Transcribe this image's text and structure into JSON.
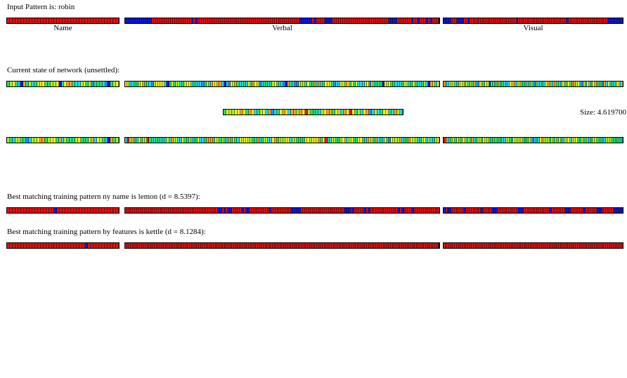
{
  "header": {
    "input_pattern": "Input Pattern is: robin"
  },
  "group_labels": {
    "name": "Name",
    "verbal": "Verbal",
    "visual": "Visual"
  },
  "network": {
    "state_label": "Current state of network (unsettled):",
    "size_label": "Size: 4.619700"
  },
  "matches": {
    "by_name_label": "Best matching training pattern ny name is lemon (d = 8.5397):",
    "by_features_label": "Best matching training pattern by features is kettle (d = 8.1284):"
  },
  "colors": {
    "on": "#e01010",
    "off": "#1018d8",
    "palette": [
      "#1a1ad8",
      "#1e90ff",
      "#20d8f0",
      "#20e070",
      "#a8f020",
      "#f0f020",
      "#f0a020",
      "#e81818"
    ]
  },
  "patterns": {
    "input": {
      "name": "RRRRRRRRRRRRRRRRRRRRRRRRRRRRRRRRRRRRRRRR",
      "verbal": "BBBBBBBBBBBBBRRRRRRRRRRRRRRRRRRRBRBRRRRRRRRRRRRRRRRRRRRRRRRRRRRRRRRRRRRRRRRRRRRRRRRRBBBBBBRBRRRRBBBBRRRRRRRRRRRRRRRRRRRRRRRRRRRBBBBRRRRRRRBRRBRRRBRBRRR",
      "visual": "BBBBRRRBBBBRRBRRRRRRRRRRRRRRRRRRRRRRRRRBRRRRRRRRRRRRRRRRRRRRRRRRRRBRRRRRRRRRRRRRRRRRRRRRBBBBBBBB"
    },
    "state_top": {
      "name": "34532063423455334450256632245341333210345",
      "verbal": "54223345632214555520353442345523222134265566202154632232536541233234532210632114442533626235543122546535352224514233305453322235423432234206425",
      "visual": "62245423554643536215435402363633222556245336235314223256426432253453664521435235663316252324525"
    },
    "hidden": "3544556536523452612356526646574333245663542657534256124235532642",
    "state_bottom": {
      "name": "43245331244566345536243334533346254320634",
      "verbal": "27463253447332332324264422533423352236663543432634325455443362344225634445524433335545556357324433452445335532644362325315444623365442345242345",
      "visual": "76234434435534362344354423343332254335445433344123256444343534324552545334342334443322445333332"
    },
    "match_name": {
      "name": "RRRRRRRRRRRRRRRRRBRRRRRRRRRRRRRRRRRRRRRR",
      "verbal": "RRRRRRRRRRRRRRRRRRRRRRRRRRRRRRRRRRRRRRRRRRRRRRRBBRBRBBRRRRRBRBBRRRRRRRRRRBRRRRRRRRRRBBBBBRRRRRRRRRRRRRRRRRRRRRRBBBRBRRRRRBRBRRRRRRRRRRRRRRBRBRRRRBRRRRRRRRRRRRR",
      "visual": "BRBBRRRRRRRBRRRRRRRRBRRRRRBBBRRRRRRRRRRRBBBRRRRRRRRRRRRRRBRRRRRRRBBBRRRRRRRBRRRRRRBBBRRRRRRBBBBB"
    },
    "match_features": {
      "name": "RRRRRRRRRRRRRRRRRRRRRRRRRRRRBRRRRRRRRRRR",
      "verbal": "RRRRRRRRRRRRRRRRRRRRRRRRRRRRRRRRRRRRRRRRRRRRRRRRRRRRRRRRRRRRRRRRRRRRRRRRRRRRRRRRRRRRRRRRRRRRRRRRRRRRRRRRRRRRRRRRRRRRRRRRRRRRRRRRRRRRRRRRRRRRRRRRRRRRRRRRRRRRRRRRRRRRRRRRRR",
      "visual": "RRRRRRRRRRRRRRRRRRRRRRRRRRRRRRRRRRRRRRRRRRRRRRRRRRRRRRRRRRRRRRRRRRRRRRRRRRRRRRRRRRRRRRRRRRRRRRR"
    }
  }
}
